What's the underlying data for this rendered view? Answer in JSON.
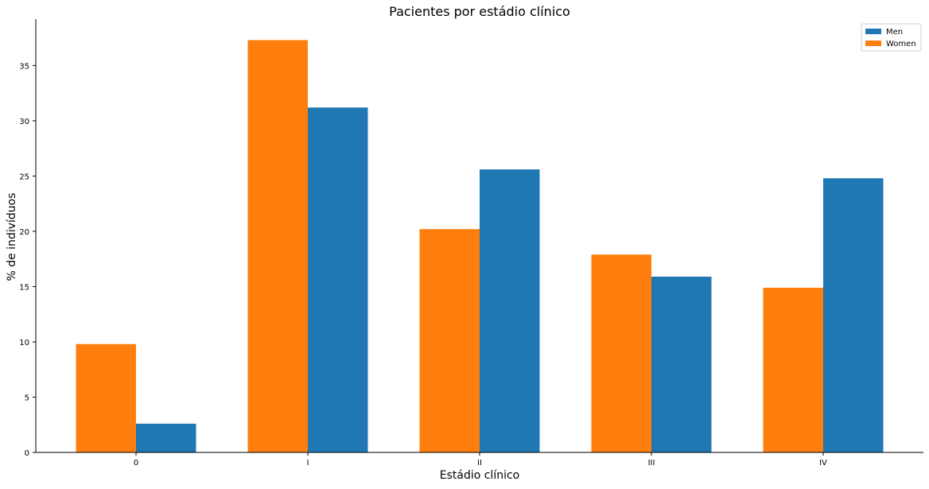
{
  "chart_data": {
    "type": "bar",
    "title": "Pacientes por estádio clínico",
    "xlabel": "Estádio clínico",
    "ylabel": "% de indivíduos",
    "categories": [
      "0",
      "I",
      "II",
      "III",
      "IV"
    ],
    "series": [
      {
        "name": "Women",
        "color": "#ff7f0e",
        "values": [
          9.8,
          37.3,
          20.2,
          17.9,
          14.9
        ]
      },
      {
        "name": "Men",
        "color": "#1f77b4",
        "values": [
          2.6,
          31.2,
          25.6,
          15.9,
          24.8
        ]
      }
    ],
    "legend_order": [
      "Men",
      "Women"
    ],
    "legend_position": "top-right",
    "ylim": [
      0,
      39.2
    ],
    "yticks": [
      0,
      5,
      10,
      15,
      20,
      25,
      30,
      35
    ],
    "grid": false,
    "spines_visible": [
      "left",
      "bottom"
    ]
  }
}
